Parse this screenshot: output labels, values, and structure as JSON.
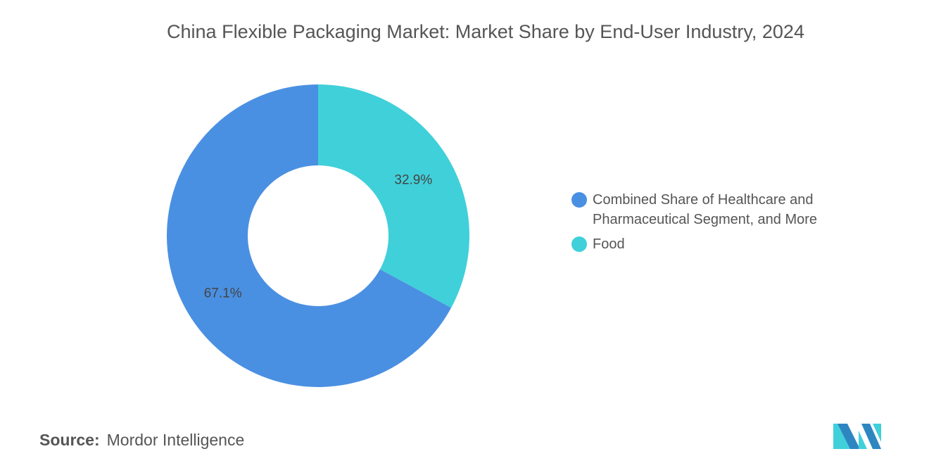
{
  "chart_data": {
    "type": "pie",
    "donut": true,
    "title": "China Flexible Packaging Market: Market Share by End-User Industry, 2024",
    "slices": [
      {
        "label": "Food",
        "value": 32.9,
        "display": "32.9%",
        "color": "#40D0DA"
      },
      {
        "label": "Combined Share of Healthcare and Pharmaceutical Segment, and More",
        "value": 67.1,
        "display": "67.1%",
        "color": "#4A90E2"
      }
    ],
    "legend": {
      "placement": "right",
      "entries": [
        {
          "label": "Combined Share of Healthcare and Pharmaceutical Segment, and More",
          "color": "#4A90E2"
        },
        {
          "label": "Food",
          "color": "#40D0DA"
        }
      ]
    }
  },
  "source": {
    "label": "Source:",
    "value": "Mordor Intelligence"
  },
  "logo": {
    "text": "Mordor Intelligence",
    "colors": [
      "#2E86C1",
      "#40D0DA"
    ]
  }
}
